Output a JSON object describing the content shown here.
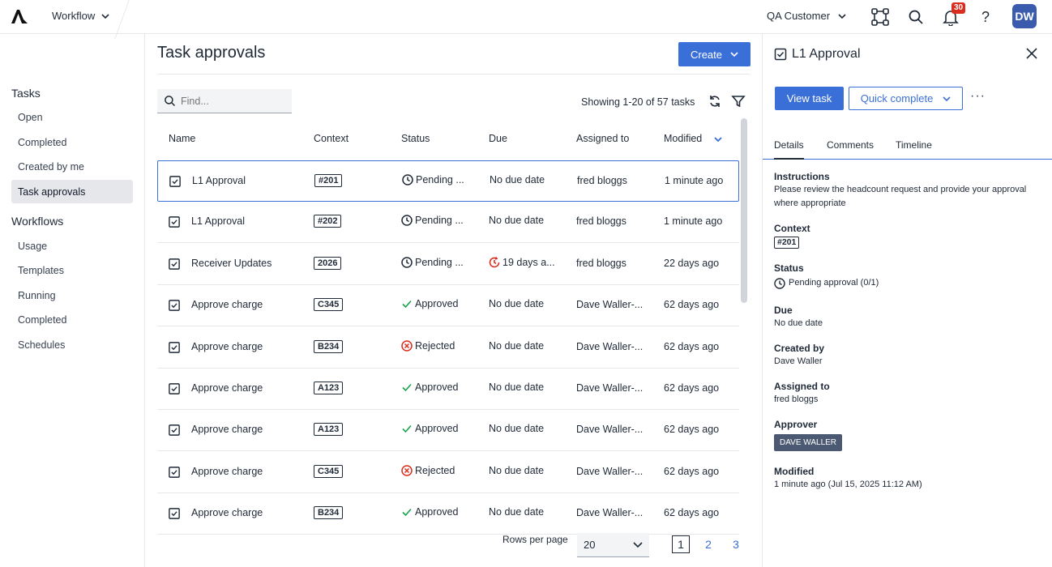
{
  "topbar": {
    "app_name": "Workflow",
    "customer": "QA Customer",
    "notification_count": "30",
    "avatar_initials": "DW",
    "help": "?"
  },
  "sidebar": {
    "tasks_heading": "Tasks",
    "tasks_items": [
      "Open",
      "Completed",
      "Created by me",
      "Task approvals"
    ],
    "workflows_heading": "Workflows",
    "workflow_items": [
      "Usage",
      "Templates",
      "Running",
      "Completed",
      "Schedules"
    ]
  },
  "main": {
    "title": "Task approvals",
    "create_label": "Create",
    "search_placeholder": "Find...",
    "showing": "Showing 1-20 of 57 tasks",
    "columns": [
      "Name",
      "Context",
      "Status",
      "Due",
      "Assigned to",
      "Modified"
    ],
    "rows": [
      {
        "name": "L1 Approval",
        "context": "#201",
        "status": "Pending ...",
        "status_type": "pending",
        "due": "No due date",
        "due_overdue": false,
        "assigned": "fred bloggs",
        "modified": "1 minute ago"
      },
      {
        "name": "L1 Approval",
        "context": "#202",
        "status": "Pending ...",
        "status_type": "pending",
        "due": "No due date",
        "due_overdue": false,
        "assigned": "fred bloggs",
        "modified": "1 minute ago"
      },
      {
        "name": "Receiver Updates",
        "context": "2026",
        "status": "Pending ...",
        "status_type": "pending",
        "due": "19 days a...",
        "due_overdue": true,
        "assigned": "fred bloggs",
        "modified": "22 days ago"
      },
      {
        "name": "Approve charge",
        "context": "C345",
        "status": "Approved",
        "status_type": "approved",
        "due": "No due date",
        "due_overdue": false,
        "assigned": "Dave Waller-...",
        "modified": "62 days ago"
      },
      {
        "name": "Approve charge",
        "context": "B234",
        "status": "Rejected",
        "status_type": "rejected",
        "due": "No due date",
        "due_overdue": false,
        "assigned": "Dave Waller-...",
        "modified": "62 days ago"
      },
      {
        "name": "Approve charge",
        "context": "A123",
        "status": "Approved",
        "status_type": "approved",
        "due": "No due date",
        "due_overdue": false,
        "assigned": "Dave Waller-...",
        "modified": "62 days ago"
      },
      {
        "name": "Approve charge",
        "context": "A123",
        "status": "Approved",
        "status_type": "approved",
        "due": "No due date",
        "due_overdue": false,
        "assigned": "Dave Waller-...",
        "modified": "62 days ago"
      },
      {
        "name": "Approve charge",
        "context": "C345",
        "status": "Rejected",
        "status_type": "rejected",
        "due": "No due date",
        "due_overdue": false,
        "assigned": "Dave Waller-...",
        "modified": "62 days ago"
      },
      {
        "name": "Approve charge",
        "context": "B234",
        "status": "Approved",
        "status_type": "approved",
        "due": "No due date",
        "due_overdue": false,
        "assigned": "Dave Waller-...",
        "modified": "62 days ago"
      }
    ],
    "rows_per_page_label": "Rows per page",
    "rows_per_page": "20",
    "pages": [
      "1",
      "2",
      "3"
    ],
    "current_page": "1"
  },
  "detail": {
    "title": "L1 Approval",
    "view_task": "View task",
    "quick_complete": "Quick complete",
    "more": "···",
    "tabs": [
      "Details",
      "Comments",
      "Timeline"
    ],
    "instructions_label": "Instructions",
    "instructions": "Please review the headcount request and provide your approval where appropriate",
    "context_label": "Context",
    "context": "#201",
    "status_label": "Status",
    "status": "Pending approval (0/1)",
    "due_label": "Due",
    "due": "No due date",
    "created_by_label": "Created by",
    "created_by": "Dave Waller",
    "assigned_to_label": "Assigned to",
    "assigned_to": "fred bloggs",
    "approver_label": "Approver",
    "approver": "DAVE WALLER",
    "modified_label": "Modified",
    "modified": "1 minute ago (Jul 15, 2025 11:12 AM)"
  },
  "colors": {
    "accent": "#3b6fd8",
    "rejected": "#d92d20",
    "approved": "#16a34a",
    "badge": "#d92d20",
    "avatar": "#3b5cad"
  }
}
